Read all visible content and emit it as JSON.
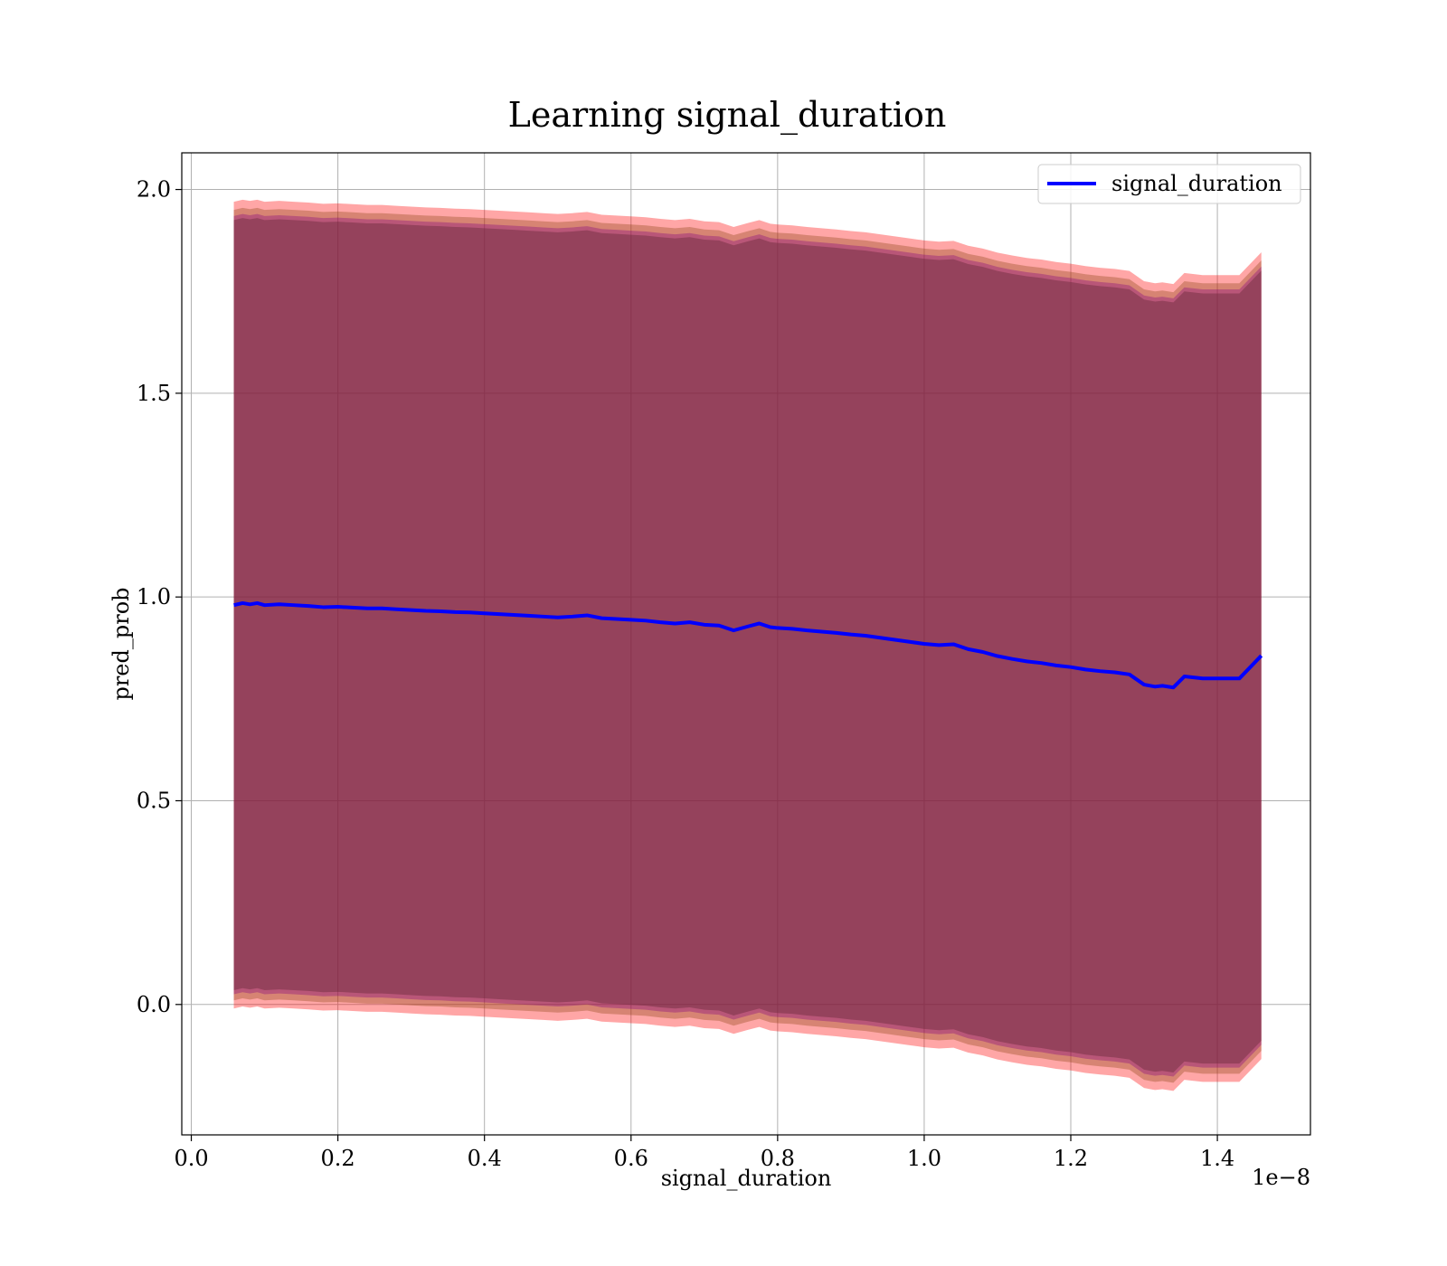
{
  "chart_data": {
    "type": "area",
    "title": "Learning signal_duration",
    "xlabel": "signal_duration",
    "ylabel": "pred_prob",
    "x_offset_label": "1e−8",
    "xlim": [
      -0.013,
      1.527
    ],
    "ylim": [
      -0.32,
      2.09
    ],
    "x_ticks": [
      0.0,
      0.2,
      0.4,
      0.6,
      0.8,
      1.0,
      1.2,
      1.4
    ],
    "x_tick_labels": [
      "0.0",
      "0.2",
      "0.4",
      "0.6",
      "0.8",
      "1.0",
      "1.2",
      "1.4"
    ],
    "y_ticks": [
      0.0,
      0.5,
      1.0,
      1.5,
      2.0
    ],
    "y_tick_labels": [
      "0.0",
      "0.5",
      "1.0",
      "1.5",
      "2.0"
    ],
    "grid": true,
    "legend_position": "top-right",
    "series": [
      {
        "name": "signal_duration",
        "color": "#0000ff",
        "x": [
          0.058,
          0.07,
          0.08,
          0.09,
          0.1,
          0.12,
          0.14,
          0.16,
          0.18,
          0.2,
          0.22,
          0.24,
          0.26,
          0.28,
          0.3,
          0.32,
          0.34,
          0.36,
          0.38,
          0.4,
          0.42,
          0.44,
          0.46,
          0.48,
          0.5,
          0.52,
          0.54,
          0.56,
          0.58,
          0.6,
          0.62,
          0.64,
          0.66,
          0.68,
          0.7,
          0.72,
          0.74,
          0.76,
          0.775,
          0.79,
          0.8,
          0.82,
          0.84,
          0.86,
          0.88,
          0.9,
          0.92,
          0.94,
          0.96,
          0.98,
          1.0,
          1.02,
          1.04,
          1.06,
          1.08,
          1.1,
          1.12,
          1.14,
          1.16,
          1.18,
          1.2,
          1.22,
          1.24,
          1.26,
          1.28,
          1.3,
          1.315,
          1.325,
          1.34,
          1.355,
          1.38,
          1.4,
          1.43,
          1.46
        ],
        "y": [
          0.98,
          0.985,
          0.982,
          0.985,
          0.98,
          0.982,
          0.98,
          0.978,
          0.975,
          0.976,
          0.974,
          0.972,
          0.972,
          0.97,
          0.968,
          0.966,
          0.965,
          0.963,
          0.962,
          0.96,
          0.958,
          0.956,
          0.954,
          0.952,
          0.95,
          0.952,
          0.955,
          0.948,
          0.946,
          0.944,
          0.942,
          0.938,
          0.935,
          0.938,
          0.932,
          0.93,
          0.918,
          0.928,
          0.935,
          0.926,
          0.924,
          0.922,
          0.918,
          0.915,
          0.912,
          0.908,
          0.905,
          0.9,
          0.895,
          0.89,
          0.885,
          0.882,
          0.884,
          0.872,
          0.865,
          0.855,
          0.848,
          0.842,
          0.838,
          0.832,
          0.828,
          0.822,
          0.818,
          0.815,
          0.81,
          0.785,
          0.78,
          0.782,
          0.778,
          0.805,
          0.8,
          0.8,
          0.8,
          0.856
        ]
      }
    ],
    "bands": [
      {
        "offset": 0.99,
        "color": "#ff0000",
        "opacity": 0.35
      },
      {
        "offset": 0.97,
        "color": "#8b4513",
        "opacity": 0.35
      },
      {
        "offset": 0.955,
        "color": "#800080",
        "opacity": 0.35
      },
      {
        "offset": 0.945,
        "color": "#6b2a3a",
        "opacity": 0.45
      }
    ]
  }
}
